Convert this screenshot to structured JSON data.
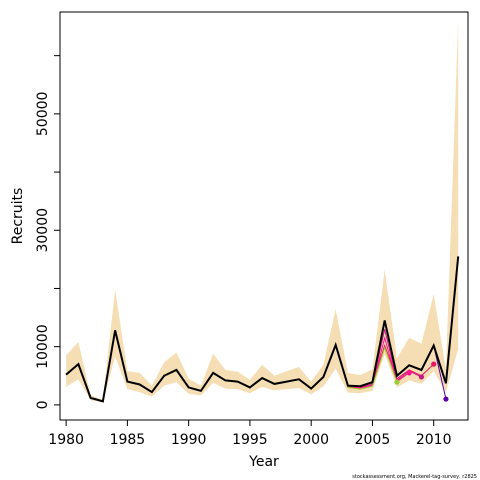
{
  "chart_data": {
    "type": "line",
    "title": "",
    "xlabel": "Year",
    "ylabel": "Recruits",
    "footnote": "stockassessment.org, Mackerel-tag-survey, r2825",
    "xlim": [
      1979.5,
      2012.8
    ],
    "ylim": [
      -2600,
      67500
    ],
    "xticks": [
      1980,
      1985,
      1990,
      1995,
      2000,
      2005,
      2010
    ],
    "yticks_labeled": [
      0,
      10000,
      30000,
      50000
    ],
    "yticks_minor": [
      20000,
      40000,
      60000
    ],
    "grid": false,
    "legend": "none",
    "colors": {
      "band": "#f5deb3",
      "main": "#000000",
      "retro": [
        "#e8175d",
        "#c71585",
        "#ff1493",
        "#9acd32",
        "#5a00a8"
      ]
    },
    "years": [
      1980,
      1981,
      1982,
      1983,
      1984,
      1985,
      1986,
      1987,
      1988,
      1989,
      1990,
      1991,
      1992,
      1993,
      1994,
      1995,
      1996,
      1997,
      1998,
      1999,
      2000,
      2001,
      2002,
      2003,
      2004,
      2005,
      2006,
      2007,
      2008,
      2009,
      2010,
      2011,
      2012
    ],
    "series": [
      {
        "values": [
          5200,
          7000,
          1200,
          600,
          12800,
          4000,
          3500,
          2200,
          5000,
          6000,
          3000,
          2400,
          5500,
          4200,
          4000,
          3000,
          4600,
          3600,
          4000,
          4400,
          2800,
          4800,
          10300,
          3300,
          3200,
          3900,
          14500,
          5000,
          6800,
          6000,
          10200,
          3700,
          25500
        ]
      }
    ],
    "upper": [
      8500,
      10800,
      1700,
      900,
      19800,
      5800,
      5500,
      3300,
      7300,
      9000,
      4500,
      3300,
      8800,
      6000,
      5700,
      4300,
      6900,
      5000,
      5800,
      6500,
      4000,
      6900,
      16500,
      5500,
      5100,
      6100,
      23200,
      8000,
      11500,
      10500,
      19000,
      6100,
      66000
    ],
    "lower": [
      3100,
      4400,
      800,
      400,
      8300,
      2700,
      2200,
      1400,
      3300,
      3900,
      1900,
      1600,
      3800,
      2800,
      2700,
      2000,
      3100,
      2500,
      2700,
      2900,
      1800,
      3200,
      6200,
      2100,
      2000,
      2400,
      8700,
      3000,
      4200,
      3600,
      5800,
      2200,
      9600
    ],
    "retro_series": [
      {
        "values": [
          5200,
          7000,
          1200,
          600,
          12800,
          4000,
          3500,
          2200,
          5000,
          6000,
          3000,
          2400,
          5500,
          4200,
          4000,
          3000,
          4600,
          3600,
          4000,
          4400,
          2800,
          4800,
          10300,
          3300,
          3200,
          3700,
          10200,
          4500,
          6000,
          5000,
          7000
        ],
        "end_year": 2010
      },
      {
        "values": [
          5200,
          7000,
          1200,
          600,
          12800,
          4000,
          3500,
          2200,
          5000,
          6000,
          3000,
          2400,
          5500,
          4200,
          4000,
          3000,
          4600,
          3600,
          4000,
          4400,
          2800,
          4800,
          10300,
          3200,
          3000,
          3500,
          13000,
          4200,
          5800,
          4800
        ],
        "end_year": 2009
      },
      {
        "values": [
          5200,
          7000,
          1200,
          600,
          12800,
          4000,
          3500,
          2200,
          5000,
          6000,
          3000,
          2400,
          5500,
          4200,
          4000,
          3000,
          4600,
          3600,
          4000,
          4400,
          2800,
          4800,
          10300,
          3100,
          2900,
          3300,
          11500,
          4000,
          5500
        ],
        "end_year": 2008
      },
      {
        "values": [
          5200,
          7000,
          1200,
          600,
          12800,
          4000,
          3500,
          2200,
          5000,
          6000,
          3000,
          2400,
          5500,
          4200,
          4000,
          3000,
          4600,
          3600,
          4000,
          4400,
          2800,
          4800,
          10300,
          3000,
          2700,
          3200,
          9800,
          3900
        ],
        "end_year": 2007
      },
      {
        "values": [
          5200,
          7000,
          1200,
          600,
          12800,
          4000,
          3500,
          2200,
          5000,
          6000,
          3000,
          2400,
          5500,
          4200,
          4000,
          3000,
          4600,
          3600,
          4000,
          4400,
          2800,
          4800,
          10300,
          3300,
          3200,
          3900,
          14500,
          5000,
          6800,
          6000,
          10200,
          1000
        ],
        "end_year": 2011
      }
    ]
  }
}
